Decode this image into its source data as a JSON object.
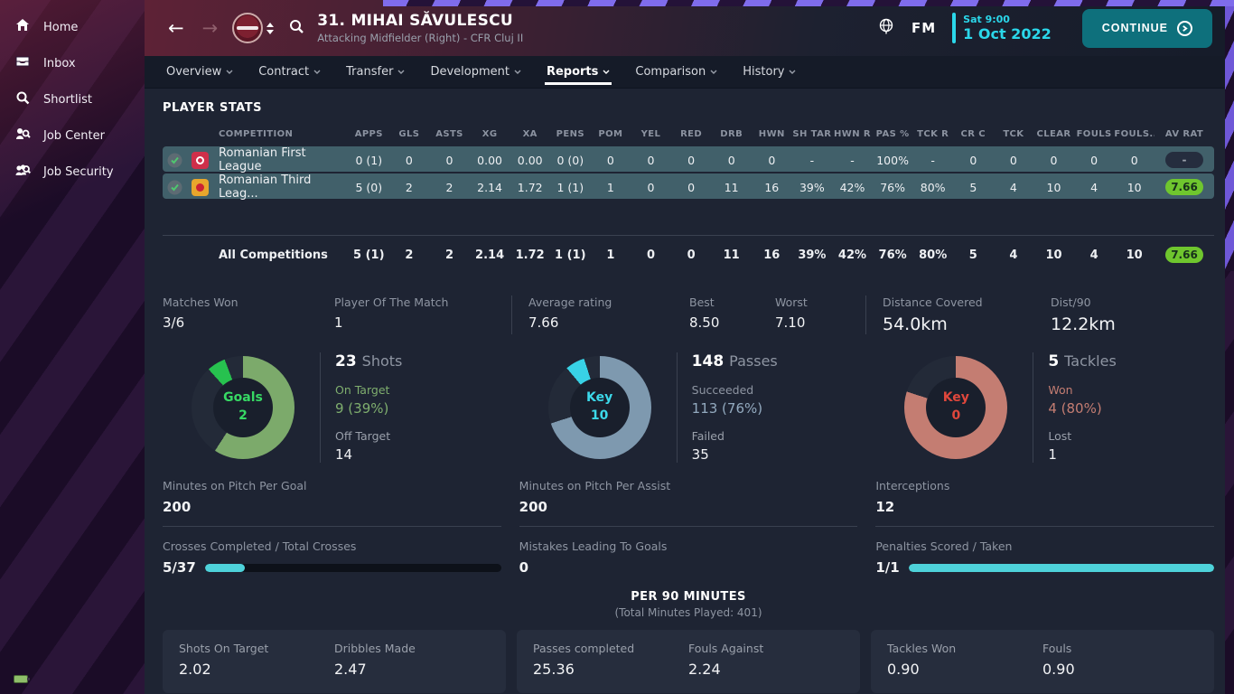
{
  "app": {
    "fm_label": "FM",
    "time": "Sat 9:00",
    "date": "1 Oct 2022",
    "continue_label": "CONTINUE"
  },
  "colors": {
    "accent_cyan": "#2bd7ea",
    "continue_teal": "#0e707c",
    "rating_green": "#6fc62e",
    "row_teal": "#41606a",
    "donut_green": "#7caa6b",
    "donut_blue": "#7e99af",
    "donut_red": "#c47d72"
  },
  "sidebar": {
    "items": [
      {
        "label": "Home"
      },
      {
        "label": "Inbox"
      },
      {
        "label": "Shortlist"
      },
      {
        "label": "Job Center"
      },
      {
        "label": "Job Security"
      }
    ]
  },
  "header": {
    "title": "31. MIHAI SĂVULESCU",
    "subtitle": "Attacking Midfielder (Right) - CFR Cluj II"
  },
  "nav": {
    "tabs": [
      {
        "label": "Overview"
      },
      {
        "label": "Contract"
      },
      {
        "label": "Transfer"
      },
      {
        "label": "Development"
      },
      {
        "label": "Reports"
      },
      {
        "label": "Comparison"
      },
      {
        "label": "History"
      }
    ],
    "active": "Reports"
  },
  "page_title": "PLAYER STATS",
  "table": {
    "competition_header": "COMPETITION",
    "avrat_header": "AV RAT",
    "stat_columns": [
      "APPS",
      "GLS",
      "ASTS",
      "XG",
      "XA",
      "PENS",
      "POM",
      "YEL",
      "RED",
      "DRB",
      "HWN",
      "SH TAR",
      "HWN R",
      "PAS %",
      "TCK R",
      "CR C",
      "TCK",
      "CLEAR",
      "FOULS",
      "FOULS..."
    ],
    "rows": [
      {
        "competition": "Romanian First League",
        "values": [
          "0 (1)",
          "0",
          "0",
          "0.00",
          "0.00",
          "0 (0)",
          "0",
          "0",
          "0",
          "0",
          "0",
          "-",
          "-",
          "100%",
          "-",
          "0",
          "0",
          "0",
          "0",
          "0"
        ],
        "rating": "-"
      },
      {
        "competition": "Romanian Third Leag...",
        "values": [
          "5 (0)",
          "2",
          "2",
          "2.14",
          "1.72",
          "1 (1)",
          "1",
          "0",
          "0",
          "11",
          "16",
          "39%",
          "42%",
          "76%",
          "80%",
          "5",
          "4",
          "10",
          "4",
          "10"
        ],
        "rating": "7.66"
      }
    ],
    "totals": {
      "label": "All Competitions",
      "values": [
        "5 (1)",
        "2",
        "2",
        "2.14",
        "1.72",
        "1 (1)",
        "1",
        "0",
        "0",
        "11",
        "16",
        "39%",
        "42%",
        "76%",
        "80%",
        "5",
        "4",
        "10",
        "4",
        "10"
      ],
      "rating": "7.66"
    }
  },
  "summary": {
    "groups": [
      {
        "items": [
          {
            "label": "Matches Won",
            "value": "3/6"
          },
          {
            "label": "Player Of The Match",
            "value": "1"
          }
        ]
      },
      {
        "items": [
          {
            "label": "Average rating",
            "value": "7.66"
          },
          {
            "label": "Best",
            "value": "8.50"
          },
          {
            "label": "Worst",
            "value": "7.10"
          }
        ]
      },
      {
        "items": [
          {
            "label": "Distance Covered",
            "value": "54.0km"
          },
          {
            "label": "Dist/90",
            "value": "12.2km"
          }
        ]
      }
    ]
  },
  "donuts": [
    {
      "center_label": "Goals",
      "center_value": "2",
      "total": "23",
      "total_label": "Shots",
      "s1_label": "On Target",
      "s1_value": "9 (39%)",
      "s2_label": "Off Target",
      "s2_value": "14"
    },
    {
      "center_label": "Key",
      "center_value": "10",
      "total": "148",
      "total_label": "Passes",
      "s1_label": "Succeeded",
      "s1_value": "113 (76%)",
      "s2_label": "Failed",
      "s2_value": "35"
    },
    {
      "center_label": "Key",
      "center_value": "0",
      "total": "5",
      "total_label": "Tackles",
      "s1_label": "Won",
      "s1_value": "4 (80%)",
      "s2_label": "Lost",
      "s2_value": "1"
    }
  ],
  "metrics": [
    {
      "label": "Minutes on Pitch Per Goal",
      "value": "200"
    },
    {
      "label": "Minutes on Pitch Per Assist",
      "value": "200"
    },
    {
      "label": "Interceptions",
      "value": "12"
    }
  ],
  "bars": [
    {
      "label": "Crosses Completed / Total Crosses",
      "value": "5/37",
      "pct": 13.5
    },
    {
      "label": "Mistakes Leading To Goals",
      "value": "0"
    },
    {
      "label": "Penalties Scored / Taken",
      "value": "1/1",
      "pct": 100
    }
  ],
  "per90": {
    "title": "PER 90 MINUTES",
    "subtitle": "(Total Minutes Played: 401)",
    "cards": [
      {
        "stats": [
          {
            "label": "Shots On Target",
            "value": "2.02"
          },
          {
            "label": "Dribbles Made",
            "value": "2.47"
          }
        ]
      },
      {
        "stats": [
          {
            "label": "Passes completed",
            "value": "25.36"
          },
          {
            "label": "Fouls Against",
            "value": "2.24"
          }
        ]
      },
      {
        "stats": [
          {
            "label": "Tackles Won",
            "value": "0.90"
          },
          {
            "label": "Fouls",
            "value": "0.90"
          }
        ]
      }
    ]
  }
}
